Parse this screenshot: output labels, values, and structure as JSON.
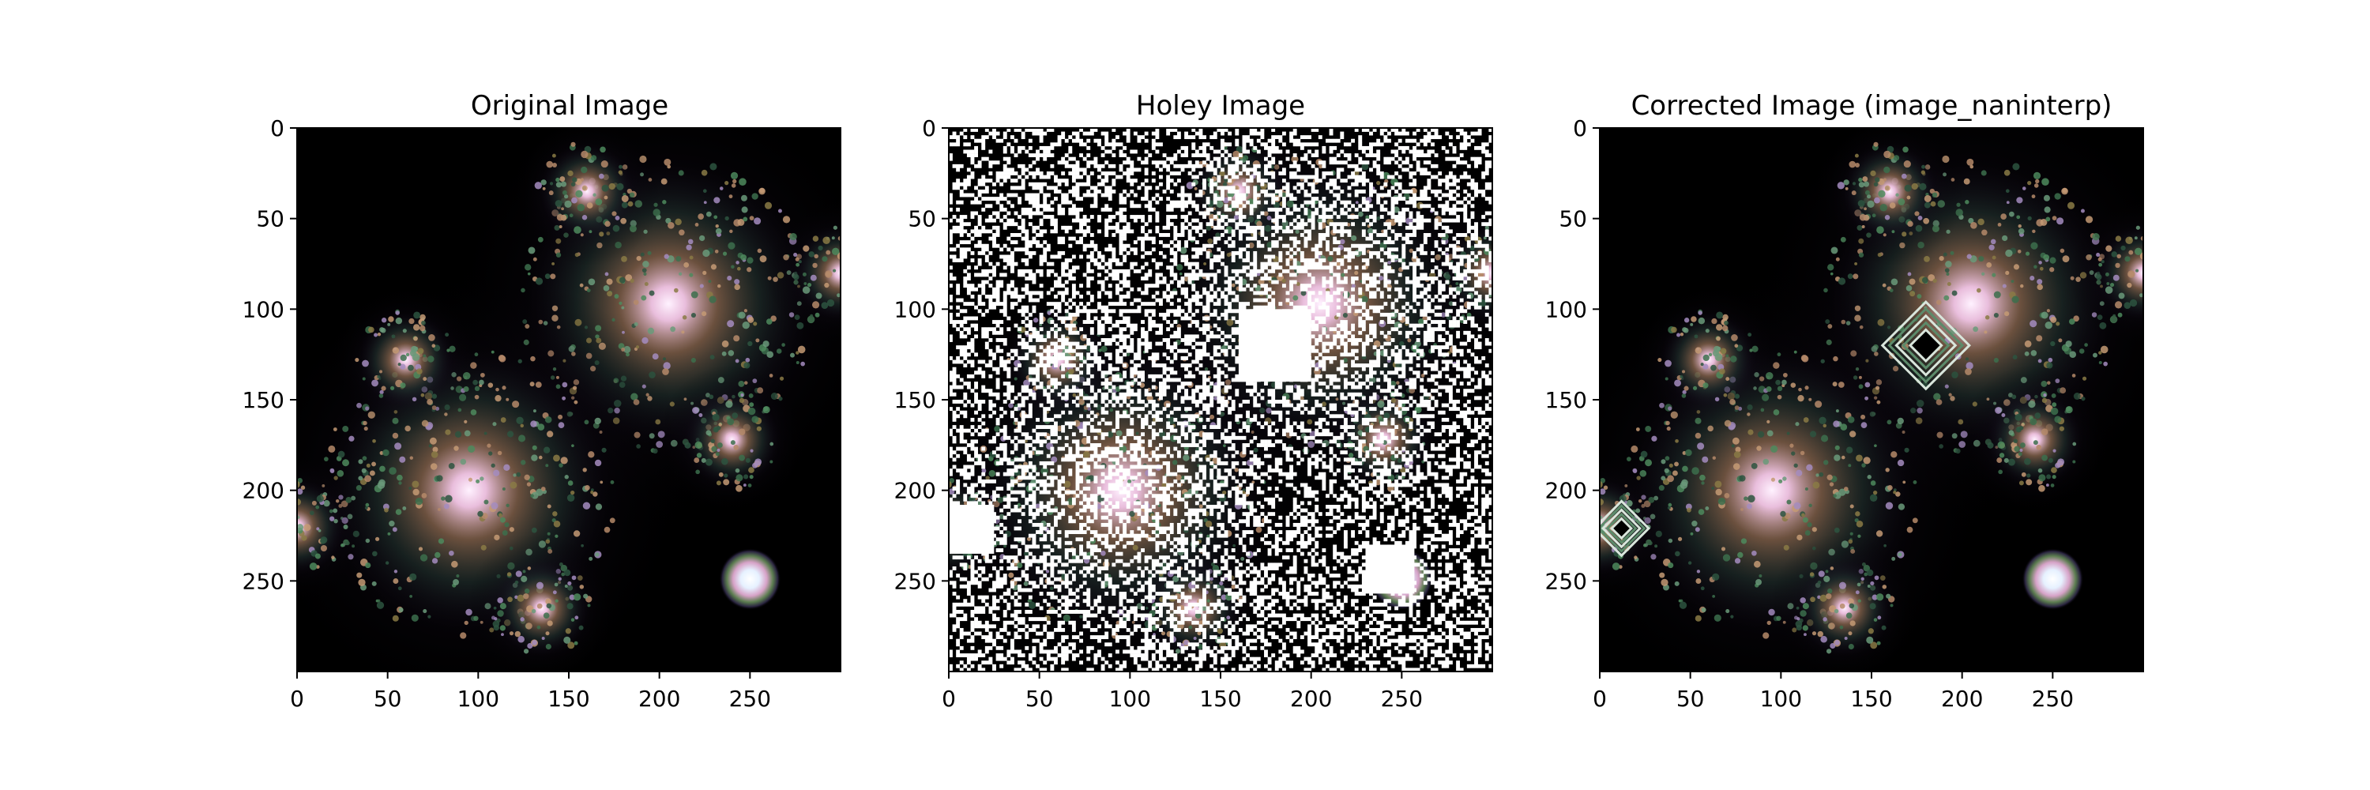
{
  "figure": {
    "background": "#ffffff",
    "frame_color": "#000000"
  },
  "chart_data": [
    {
      "type": "heatmap",
      "title": "Original Image",
      "xlabel": "",
      "ylabel": "",
      "xlim": [
        0,
        300
      ],
      "ylim": [
        300,
        0
      ],
      "xticks": [
        0,
        50,
        100,
        150,
        200,
        250
      ],
      "yticks": [
        0,
        50,
        100,
        150,
        200,
        250
      ],
      "xtick_labels": [
        "0",
        "50",
        "100",
        "150",
        "200",
        "250"
      ],
      "ytick_labels": [
        "0",
        "50",
        "100",
        "150",
        "200",
        "250"
      ],
      "colormap": "cubehelix",
      "background_color": "#000000",
      "features": {
        "fractal_centers": [
          [
            205,
            97
          ],
          [
            95,
            200
          ],
          [
            160,
            35
          ],
          [
            60,
            128
          ],
          [
            240,
            172
          ],
          [
            135,
            265
          ],
          [
            300,
            80
          ],
          [
            0,
            220
          ]
        ],
        "bright_spot": [
          250,
          249
        ],
        "holes": []
      }
    },
    {
      "type": "heatmap",
      "title": "Holey Image",
      "xlabel": "",
      "ylabel": "",
      "xlim": [
        0,
        300
      ],
      "ylim": [
        300,
        0
      ],
      "xticks": [
        0,
        50,
        100,
        150,
        200,
        250
      ],
      "yticks": [
        0,
        50,
        100,
        150,
        200,
        250
      ],
      "xtick_labels": [
        "0",
        "50",
        "100",
        "150",
        "200",
        "250"
      ],
      "ytick_labels": [
        "0",
        "50",
        "100",
        "150",
        "200",
        "250"
      ],
      "colormap": "cubehelix",
      "background_color": "#000000",
      "nan_color": "#ffffff",
      "nan_fraction": 0.4,
      "features": {
        "fractal_centers": [
          [
            205,
            97
          ],
          [
            95,
            200
          ],
          [
            160,
            35
          ],
          [
            60,
            128
          ],
          [
            240,
            172
          ],
          [
            135,
            265
          ],
          [
            300,
            80
          ],
          [
            0,
            220
          ]
        ],
        "bright_spot": [
          250,
          249
        ],
        "holes": [
          [
            160,
            100,
            40,
            40
          ],
          [
            0,
            208,
            25,
            27
          ],
          [
            230,
            230,
            27,
            27
          ]
        ]
      }
    },
    {
      "type": "heatmap",
      "title": "Corrected Image (image_naninterp)",
      "xlabel": "",
      "ylabel": "",
      "xlim": [
        0,
        300
      ],
      "ylim": [
        300,
        0
      ],
      "xticks": [
        0,
        50,
        100,
        150,
        200,
        250
      ],
      "yticks": [
        0,
        50,
        100,
        150,
        200,
        250
      ],
      "xtick_labels": [
        "0",
        "50",
        "100",
        "150",
        "200",
        "250"
      ],
      "ytick_labels": [
        "0",
        "50",
        "100",
        "150",
        "200",
        "250"
      ],
      "colormap": "cubehelix",
      "background_color": "#000000",
      "features": {
        "fractal_centers": [
          [
            205,
            97
          ],
          [
            95,
            200
          ],
          [
            160,
            35
          ],
          [
            60,
            128
          ],
          [
            240,
            172
          ],
          [
            135,
            265
          ],
          [
            300,
            80
          ],
          [
            0,
            220
          ]
        ],
        "bright_spot": [
          250,
          249
        ],
        "interpolation_artifacts": [
          [
            180,
            120,
            24
          ],
          [
            12,
            221,
            15
          ]
        ]
      }
    }
  ]
}
